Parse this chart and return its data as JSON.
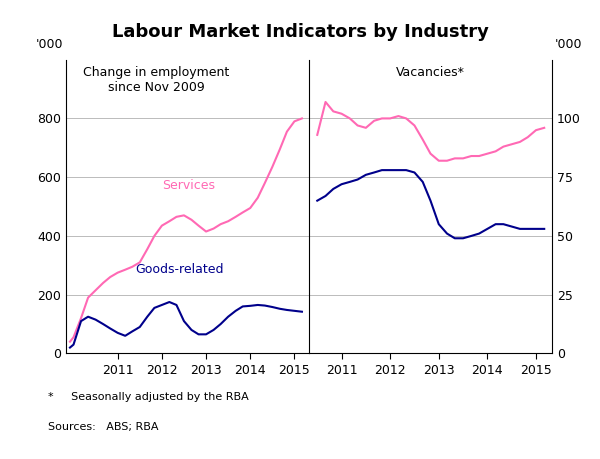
{
  "title": "Labour Market Indicators by Industry",
  "left_panel_title": "Change in employment\nsince Nov 2009",
  "right_panel_title": "Vacancies*",
  "left_ylabel": "'000",
  "right_ylabel": "'000",
  "left_ylim": [
    0,
    1000
  ],
  "right_ylim": [
    0,
    125
  ],
  "left_yticks": [
    0,
    200,
    400,
    600,
    800
  ],
  "left_yticklabels": [
    "0",
    "200",
    "400",
    "600",
    "800"
  ],
  "right_yticks": [
    0,
    25,
    50,
    75,
    100
  ],
  "right_yticklabels": [
    "0",
    "25",
    "50",
    "75",
    "100"
  ],
  "footnote1": "*     Seasonally adjusted by the RBA",
  "footnote2": "Sources:   ABS; RBA",
  "pink_color": "#FF69B4",
  "blue_color": "#00008B",
  "background_color": "#ffffff",
  "grid_color": "#BBBBBB",
  "left_services_x": [
    2009.92,
    2010.0,
    2010.17,
    2010.33,
    2010.5,
    2010.67,
    2010.83,
    2011.0,
    2011.17,
    2011.33,
    2011.5,
    2011.67,
    2011.83,
    2012.0,
    2012.17,
    2012.33,
    2012.5,
    2012.67,
    2012.83,
    2013.0,
    2013.17,
    2013.33,
    2013.5,
    2013.67,
    2013.83,
    2014.0,
    2014.17,
    2014.33,
    2014.5,
    2014.67,
    2014.83,
    2015.0,
    2015.17
  ],
  "left_services_y": [
    40,
    55,
    120,
    190,
    215,
    240,
    260,
    275,
    285,
    295,
    310,
    355,
    400,
    435,
    450,
    465,
    470,
    455,
    435,
    415,
    425,
    440,
    450,
    465,
    480,
    495,
    530,
    580,
    635,
    695,
    755,
    790,
    800
  ],
  "left_goods_x": [
    2009.92,
    2010.0,
    2010.17,
    2010.33,
    2010.5,
    2010.67,
    2010.83,
    2011.0,
    2011.17,
    2011.33,
    2011.5,
    2011.67,
    2011.83,
    2012.0,
    2012.17,
    2012.33,
    2012.5,
    2012.67,
    2012.83,
    2013.0,
    2013.17,
    2013.33,
    2013.5,
    2013.67,
    2013.83,
    2014.0,
    2014.17,
    2014.33,
    2014.5,
    2014.67,
    2014.83,
    2015.0,
    2015.17
  ],
  "left_goods_y": [
    20,
    30,
    110,
    125,
    115,
    100,
    85,
    70,
    60,
    75,
    90,
    125,
    155,
    165,
    175,
    165,
    110,
    80,
    65,
    65,
    80,
    100,
    125,
    145,
    160,
    162,
    165,
    163,
    158,
    152,
    148,
    145,
    142
  ],
  "right_services_x": [
    2010.5,
    2010.67,
    2010.83,
    2011.0,
    2011.17,
    2011.33,
    2011.5,
    2011.67,
    2011.83,
    2012.0,
    2012.17,
    2012.33,
    2012.5,
    2012.67,
    2012.83,
    2013.0,
    2013.17,
    2013.33,
    2013.5,
    2013.67,
    2013.83,
    2014.0,
    2014.17,
    2014.33,
    2014.5,
    2014.67,
    2014.83,
    2015.0,
    2015.17
  ],
  "right_services_y": [
    93,
    107,
    103,
    102,
    100,
    97,
    96,
    99,
    100,
    100,
    101,
    100,
    97,
    91,
    85,
    82,
    82,
    83,
    83,
    84,
    84,
    85,
    86,
    88,
    89,
    90,
    92,
    95,
    96
  ],
  "right_goods_x": [
    2010.5,
    2010.67,
    2010.83,
    2011.0,
    2011.17,
    2011.33,
    2011.5,
    2011.67,
    2011.83,
    2012.0,
    2012.17,
    2012.33,
    2012.5,
    2012.67,
    2012.83,
    2013.0,
    2013.17,
    2013.33,
    2013.5,
    2013.67,
    2013.83,
    2014.0,
    2014.17,
    2014.33,
    2014.5,
    2014.67,
    2014.83,
    2015.0,
    2015.17
  ],
  "right_goods_y": [
    65,
    67,
    70,
    72,
    73,
    74,
    76,
    77,
    78,
    78,
    78,
    78,
    77,
    73,
    65,
    55,
    51,
    49,
    49,
    50,
    51,
    53,
    55,
    55,
    54,
    53,
    53,
    53,
    53
  ],
  "left_xticks": [
    2011,
    2012,
    2013,
    2014,
    2015
  ],
  "left_xtick_labels": [
    "2011",
    "2012",
    "2013",
    "2014",
    "2015"
  ],
  "right_xticks": [
    2011,
    2012,
    2013,
    2014,
    2015
  ],
  "right_xtick_labels": [
    "2011",
    "2012",
    "2013",
    "2014",
    "2015"
  ],
  "left_xlim": [
    2009.83,
    2015.33
  ],
  "right_xlim": [
    2010.33,
    2015.33
  ]
}
